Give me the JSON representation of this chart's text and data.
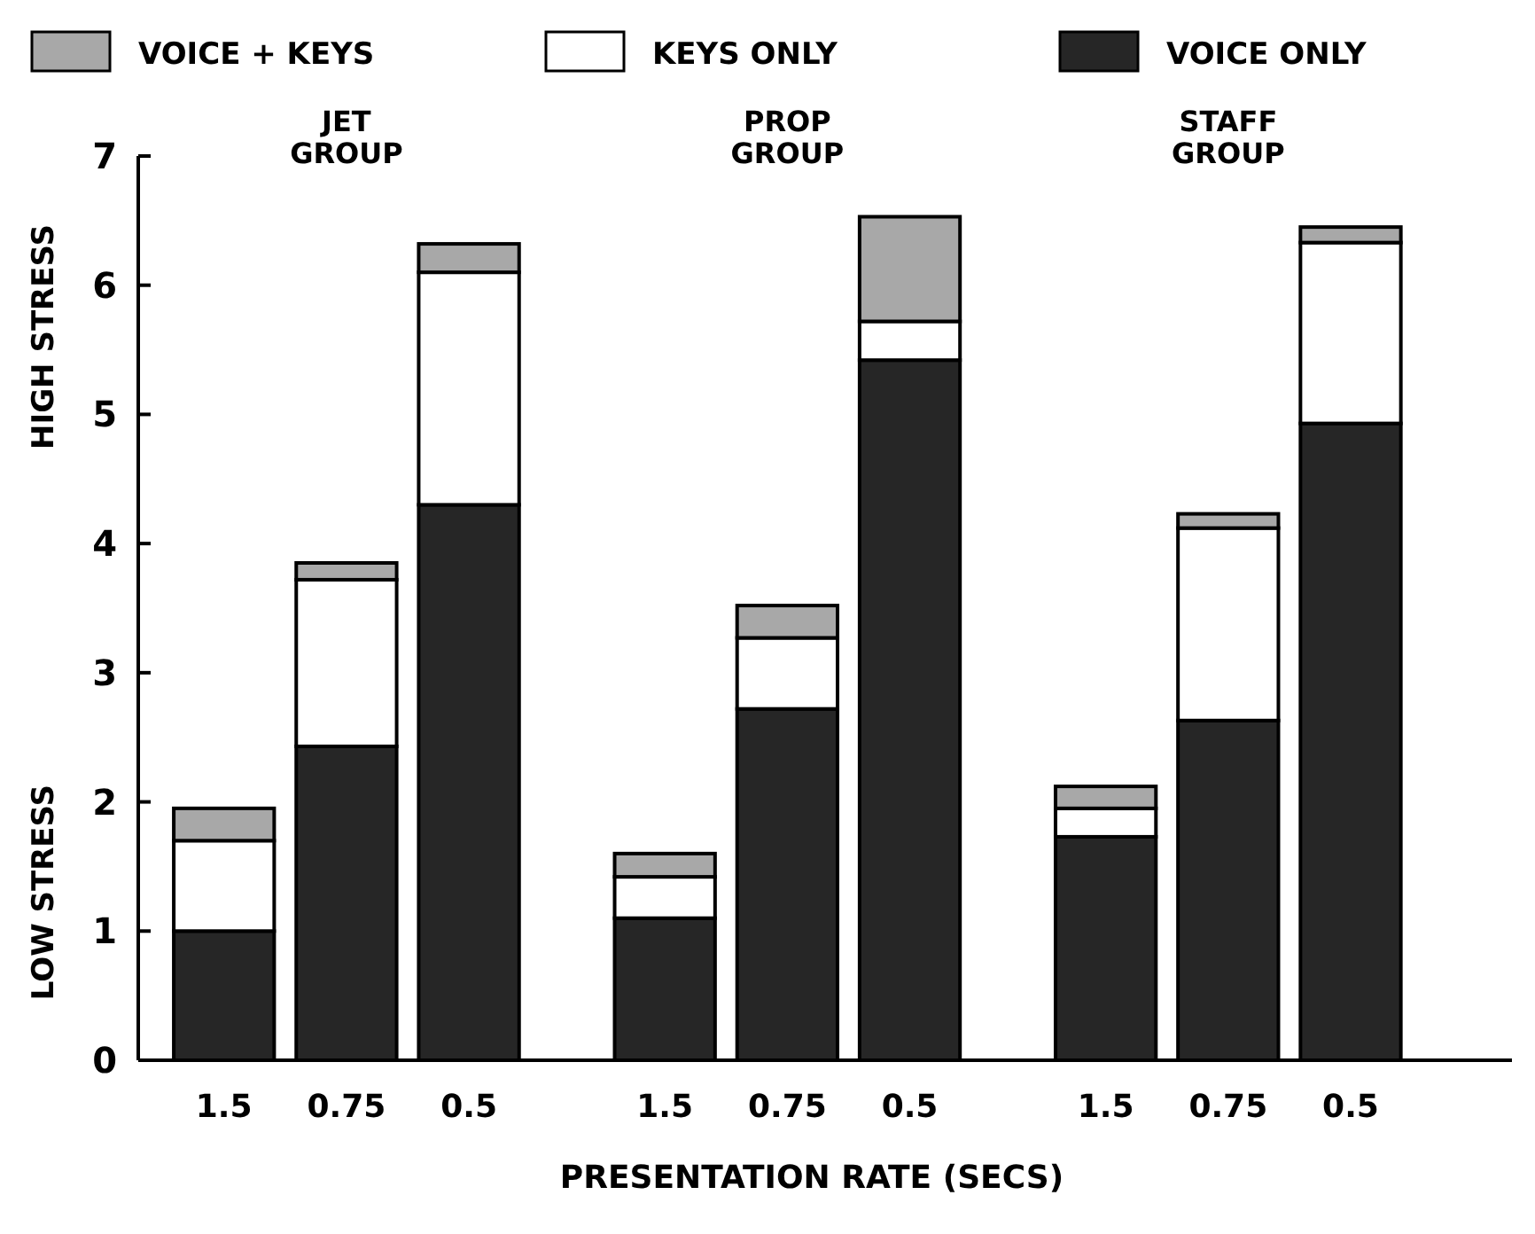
{
  "chart_data": {
    "type": "bar",
    "stacked": true,
    "xlabel": "PRESENTATION RATE (SECS)",
    "categories": [
      "1.5",
      "0.75",
      "0.5",
      "1.5",
      "0.75",
      "0.5",
      "1.5",
      "0.75",
      "0.5"
    ],
    "series": [
      {
        "name": "VOICE ONLY",
        "color": "#262626",
        "values": [
          1.0,
          2.43,
          4.3,
          1.1,
          2.72,
          5.42,
          1.73,
          2.63,
          4.93
        ]
      },
      {
        "name": "KEYS ONLY",
        "color": "#ffffff",
        "values": [
          0.7,
          1.29,
          1.8,
          0.32,
          0.55,
          0.3,
          0.22,
          1.49,
          1.4
        ]
      },
      {
        "name": "VOICE + KEYS",
        "color": "#a8a8a8",
        "values": [
          0.25,
          0.13,
          0.22,
          0.18,
          0.25,
          0.81,
          0.17,
          0.11,
          0.12
        ]
      }
    ],
    "ylim": [
      0,
      7
    ],
    "yticks": [
      0,
      1,
      2,
      3,
      4,
      5,
      6,
      7
    ],
    "legend": "top",
    "annotations": [
      "JET GROUP",
      "PROP GROUP",
      "STAFF GROUP",
      "HIGH STRESS",
      "LOW STRESS"
    ]
  }
}
